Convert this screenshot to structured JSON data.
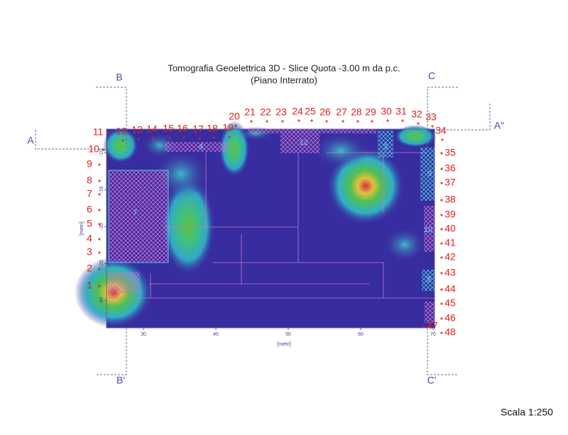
{
  "header": {
    "title": "Tomografia Geoelettrica 3D - Slice Quota -3.00 m da p.c.",
    "subtitle": "(Piano Interrato)"
  },
  "x_axis": {
    "label": "[metri]",
    "lim": [
      24.9,
      70.2
    ],
    "ticks": [
      30,
      40,
      50,
      60,
      70
    ]
  },
  "y_axis": {
    "label": "[metri]",
    "lim": [
      -6.8,
      -33.7
    ],
    "ticks": [
      -10,
      -15,
      -20,
      -25,
      -30
    ]
  },
  "electrodes": [
    "1",
    "2",
    "3",
    "4",
    "5",
    "6",
    "7",
    "8",
    "9",
    "10",
    "11",
    "12",
    "13",
    "14",
    "15",
    "16",
    "17",
    "18",
    "19",
    "20",
    "21",
    "22",
    "23",
    "24",
    "25",
    "26",
    "27",
    "28",
    "29",
    "30",
    "31",
    "32",
    "33",
    "34",
    "35",
    "36",
    "37",
    "38",
    "39",
    "40",
    "41",
    "42",
    "43",
    "44",
    "45",
    "46",
    "47",
    "48"
  ],
  "sections": [
    "A",
    "A\"",
    "B",
    "B'",
    "C",
    "C'"
  ],
  "rooms": [
    "7",
    "4",
    "12",
    "3",
    "9",
    "10",
    "8"
  ],
  "scale": "Scala 1:250"
}
